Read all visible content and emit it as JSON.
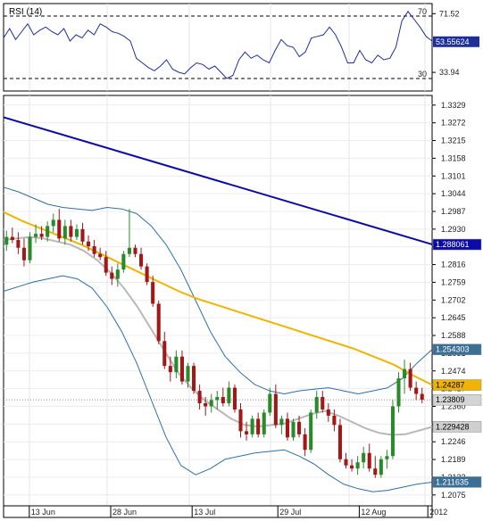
{
  "chart_data": [
    {
      "type": "line",
      "title": "RSI (14)",
      "levels": [
        {
          "label": "70",
          "value": 70
        },
        {
          "label": "30",
          "value": 30
        }
      ],
      "yticks": [
        "71.52",
        "33.94"
      ],
      "ytick_values": [
        71.52,
        33.94
      ],
      "ylim": [
        22,
        78
      ],
      "last_value_tag": "53.55624",
      "last_value": 53.55624,
      "series": [
        {
          "values": [
            56,
            62,
            55,
            60,
            65,
            58,
            61,
            63,
            60,
            58,
            62,
            54,
            58,
            56,
            61,
            58,
            65,
            63,
            60,
            59,
            57,
            54,
            43,
            40,
            37,
            35,
            38,
            42,
            36,
            34,
            33,
            37,
            40,
            39,
            36,
            38,
            34,
            30,
            32,
            42,
            47,
            43,
            45,
            42,
            40,
            48,
            55,
            51,
            50,
            44,
            47,
            56,
            57,
            58,
            63,
            58,
            50,
            40,
            40,
            48,
            42,
            40,
            45,
            42,
            43,
            50,
            67,
            73,
            68,
            63,
            57,
            54
          ]
        }
      ]
    },
    {
      "type": "candlestick",
      "x_labels": [
        "13 Jun",
        "28 Jun",
        "13 Jul",
        "29 Jul",
        "12 Aug",
        "2012"
      ],
      "x_label_positions": [
        6,
        25,
        44,
        64,
        83,
        99
      ],
      "yticks": [
        "1.3329",
        "1.3272",
        "1.3215",
        "1.3158",
        "1.3101",
        "1.3044",
        "1.2987",
        "1.2930",
        "1.2873",
        "1.2816",
        "1.2759",
        "1.2702",
        "1.2645",
        "1.2588",
        "1.2531",
        "1.2474",
        "1.2417",
        "1.2360",
        "1.2303",
        "1.2246",
        "1.2189",
        "1.2132",
        "1.2075"
      ],
      "ytick_values": [
        1.3329,
        1.3272,
        1.3215,
        1.3158,
        1.3101,
        1.3044,
        1.2987,
        1.293,
        1.2873,
        1.2816,
        1.2759,
        1.2702,
        1.2645,
        1.2588,
        1.2531,
        1.2474,
        1.2417,
        1.236,
        1.2303,
        1.2246,
        1.2189,
        1.2132,
        1.2075
      ],
      "ylim": [
        1.204,
        1.336
      ],
      "candles": [
        [
          1.288,
          1.2925,
          1.286,
          1.2905
        ],
        [
          1.2905,
          1.2935,
          1.2885,
          1.2895
        ],
        [
          1.2895,
          1.292,
          1.285,
          1.287
        ],
        [
          1.287,
          1.29,
          1.281,
          1.283
        ],
        [
          1.283,
          1.292,
          1.282,
          1.2905
        ],
        [
          1.2905,
          1.2945,
          1.2885,
          1.2915
        ],
        [
          1.2915,
          1.294,
          1.2895,
          1.2905
        ],
        [
          1.2905,
          1.2955,
          1.289,
          1.294
        ],
        [
          1.294,
          1.298,
          1.292,
          1.296
        ],
        [
          1.296,
          1.2995,
          1.289,
          1.29
        ],
        [
          1.29,
          1.296,
          1.288,
          1.294
        ],
        [
          1.294,
          1.296,
          1.289,
          1.2905
        ],
        [
          1.2905,
          1.2945,
          1.2895,
          1.293
        ],
        [
          1.293,
          1.295,
          1.288,
          1.289
        ],
        [
          1.289,
          1.291,
          1.286,
          1.2875
        ],
        [
          1.2875,
          1.2895,
          1.284,
          1.285
        ],
        [
          1.285,
          1.287,
          1.283,
          1.284
        ],
        [
          1.284,
          1.286,
          1.278,
          1.279
        ],
        [
          1.279,
          1.281,
          1.275,
          1.277
        ],
        [
          1.277,
          1.282,
          1.2745,
          1.28
        ],
        [
          1.28,
          1.286,
          1.279,
          1.285
        ],
        [
          1.285,
          1.2995,
          1.284,
          1.287
        ],
        [
          1.287,
          1.288,
          1.284,
          1.285
        ],
        [
          1.285,
          1.287,
          1.28,
          1.281
        ],
        [
          1.281,
          1.282,
          1.275,
          1.276
        ],
        [
          1.276,
          1.278,
          1.268,
          1.269
        ],
        [
          1.269,
          1.27,
          1.256,
          1.257
        ],
        [
          1.257,
          1.26,
          1.248,
          1.249
        ],
        [
          1.249,
          1.252,
          1.244,
          1.247
        ],
        [
          1.247,
          1.254,
          1.245,
          1.252
        ],
        [
          1.252,
          1.254,
          1.243,
          1.244
        ],
        [
          1.244,
          1.25,
          1.242,
          1.249
        ],
        [
          1.249,
          1.25,
          1.24,
          1.241
        ],
        [
          1.241,
          1.243,
          1.235,
          1.237
        ],
        [
          1.237,
          1.239,
          1.233,
          1.236
        ],
        [
          1.236,
          1.24,
          1.234,
          1.238
        ],
        [
          1.238,
          1.241,
          1.235,
          1.239
        ],
        [
          1.239,
          1.242,
          1.236,
          1.237
        ],
        [
          1.237,
          1.244,
          1.236,
          1.242
        ],
        [
          1.242,
          1.243,
          1.234,
          1.235
        ],
        [
          1.235,
          1.237,
          1.226,
          1.228
        ],
        [
          1.228,
          1.231,
          1.225,
          1.227
        ],
        [
          1.227,
          1.233,
          1.226,
          1.232
        ],
        [
          1.232,
          1.234,
          1.226,
          1.227
        ],
        [
          1.227,
          1.235,
          1.226,
          1.234
        ],
        [
          1.234,
          1.242,
          1.233,
          1.24
        ],
        [
          1.24,
          1.243,
          1.229,
          1.23
        ],
        [
          1.23,
          1.233,
          1.227,
          1.232
        ],
        [
          1.232,
          1.234,
          1.225,
          1.226
        ],
        [
          1.226,
          1.232,
          1.225,
          1.231
        ],
        [
          1.231,
          1.233,
          1.226,
          1.227
        ],
        [
          1.227,
          1.229,
          1.22,
          1.222
        ],
        [
          1.222,
          1.235,
          1.221,
          1.234
        ],
        [
          1.234,
          1.241,
          1.232,
          1.239
        ],
        [
          1.239,
          1.241,
          1.234,
          1.235
        ],
        [
          1.235,
          1.237,
          1.231,
          1.233
        ],
        [
          1.233,
          1.235,
          1.228,
          1.23
        ],
        [
          1.23,
          1.232,
          1.218,
          1.219
        ],
        [
          1.219,
          1.221,
          1.216,
          1.217
        ],
        [
          1.217,
          1.219,
          1.215,
          1.216
        ],
        [
          1.216,
          1.22,
          1.214,
          1.218
        ],
        [
          1.218,
          1.223,
          1.216,
          1.221
        ],
        [
          1.221,
          1.224,
          1.215,
          1.216
        ],
        [
          1.216,
          1.22,
          1.213,
          1.214
        ],
        [
          1.214,
          1.22,
          1.213,
          1.219
        ],
        [
          1.219,
          1.222,
          1.216,
          1.22
        ],
        [
          1.22,
          1.238,
          1.219,
          1.236
        ],
        [
          1.236,
          1.247,
          1.234,
          1.245
        ],
        [
          1.245,
          1.251,
          1.24,
          1.248
        ],
        [
          1.248,
          1.25,
          1.241,
          1.242
        ],
        [
          1.242,
          1.244,
          1.238,
          1.24
        ],
        [
          1.24,
          1.242,
          1.237,
          1.2381
        ]
      ],
      "sma_200": [
        1.329,
        1.2881
      ],
      "sma_50": [
        1.2985,
        1.2955,
        1.293,
        1.2905,
        1.288,
        1.285,
        1.282,
        1.279,
        1.276,
        1.273,
        1.2705,
        1.2685,
        1.2665,
        1.2645,
        1.2625,
        1.2605,
        1.2585,
        1.2565,
        1.2545,
        1.252,
        1.2495,
        1.246,
        1.2429
      ],
      "sma_20": [
        1.2895,
        1.29,
        1.2905,
        1.29,
        1.289,
        1.288,
        1.286,
        1.283,
        1.279,
        1.274,
        1.268,
        1.261,
        1.254,
        1.247,
        1.242,
        1.238,
        1.235,
        1.232,
        1.23,
        1.2295,
        1.23,
        1.2305,
        1.232,
        1.2335,
        1.2345,
        1.233,
        1.231,
        1.229,
        1.2275,
        1.2268,
        1.227,
        1.2282,
        1.2294
      ],
      "bb_upper": [
        1.3065,
        1.305,
        1.303,
        1.301,
        1.3,
        1.2995,
        1.299,
        1.3,
        1.2995,
        1.298,
        1.294,
        1.288,
        1.28,
        1.27,
        1.26,
        1.252,
        1.247,
        1.243,
        1.241,
        1.24,
        1.241,
        1.2415,
        1.242,
        1.241,
        1.24,
        1.241,
        1.242,
        1.245,
        1.25,
        1.2543
      ],
      "bb_lower": [
        1.273,
        1.2745,
        1.276,
        1.277,
        1.278,
        1.277,
        1.274,
        1.268,
        1.26,
        1.25,
        1.238,
        1.226,
        1.217,
        1.214,
        1.216,
        1.219,
        1.22,
        1.221,
        1.2215,
        1.222,
        1.22,
        1.2175,
        1.214,
        1.211,
        1.2095,
        1.2085,
        1.209,
        1.21,
        1.211,
        1.2116
      ],
      "last_price_line": 1.2381,
      "price_tags": [
        {
          "label": "1.288061",
          "value": 1.288061,
          "color": "#0a0aa6",
          "text_color": "#ffffff"
        },
        {
          "label": "1.254303",
          "value": 1.254303,
          "color": "#3a6f96",
          "text_color": "#ffffff"
        },
        {
          "label": "1.24287",
          "value": 1.24287,
          "color": "#f0b400",
          "text_color": "#000000"
        },
        {
          "label": "1.23809",
          "value": 1.23809,
          "color": "#d4d4d4",
          "text_color": "#000000"
        },
        {
          "label": "1.229428",
          "value": 1.229428,
          "color": "#cfcfcf",
          "text_color": "#000000"
        },
        {
          "label": "1.211635",
          "value": 1.211635,
          "color": "#3a6f96",
          "text_color": "#ffffff"
        }
      ],
      "colors": {
        "up": "#2a8a2a",
        "down": "#a01818",
        "sma_200": "#0a0aa6",
        "sma_50": "#f0b400",
        "sma_20": "#b8b8b8",
        "bollinger": "#2e6ea6",
        "rsi": "#1f2f9a"
      }
    }
  ]
}
